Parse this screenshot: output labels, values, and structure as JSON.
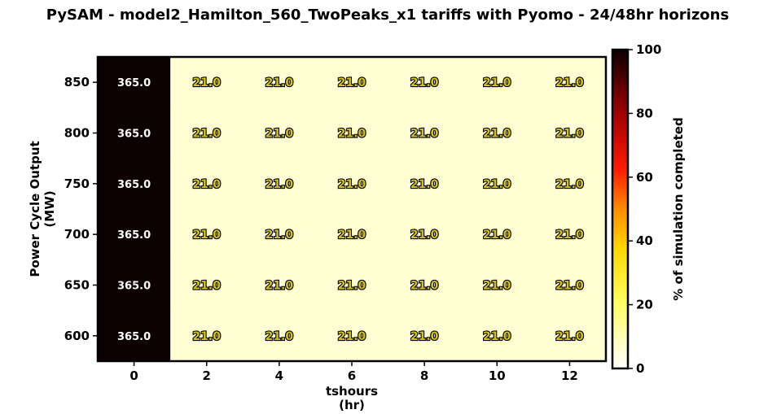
{
  "chart_data": {
    "type": "heatmap",
    "title": "PySAM - model2_Hamilton_560_TwoPeaks_x1 tariffs with Pyomo - 24/48hr horizons",
    "xlabel": [
      "tshours",
      "(hr)"
    ],
    "ylabel": [
      "Power Cycle Output",
      "(MW)"
    ],
    "x": [
      0,
      2,
      4,
      6,
      8,
      10,
      12
    ],
    "y": [
      600,
      650,
      700,
      750,
      800,
      850
    ],
    "x_tick_labels": [
      "0",
      "2",
      "4",
      "6",
      "8",
      "10",
      "12"
    ],
    "y_tick_labels": [
      "600",
      "650",
      "700",
      "750",
      "800",
      "850"
    ],
    "values": [
      [
        100,
        5.75,
        5.75,
        5.75,
        5.75,
        5.75,
        5.75
      ],
      [
        100,
        5.75,
        5.75,
        5.75,
        5.75,
        5.75,
        5.75
      ],
      [
        100,
        5.75,
        5.75,
        5.75,
        5.75,
        5.75,
        5.75
      ],
      [
        100,
        5.75,
        5.75,
        5.75,
        5.75,
        5.75,
        5.75
      ],
      [
        100,
        5.75,
        5.75,
        5.75,
        5.75,
        5.75,
        5.75
      ],
      [
        100,
        5.75,
        5.75,
        5.75,
        5.75,
        5.75,
        5.75
      ]
    ],
    "annotations": [
      [
        "365.0",
        "21.0",
        "21.0",
        "21.0",
        "21.0",
        "21.0",
        "21.0"
      ],
      [
        "365.0",
        "21.0",
        "21.0",
        "21.0",
        "21.0",
        "21.0",
        "21.0"
      ],
      [
        "365.0",
        "21.0",
        "21.0",
        "21.0",
        "21.0",
        "21.0",
        "21.0"
      ],
      [
        "365.0",
        "21.0",
        "21.0",
        "21.0",
        "21.0",
        "21.0",
        "21.0"
      ],
      [
        "365.0",
        "21.0",
        "21.0",
        "21.0",
        "21.0",
        "21.0",
        "21.0"
      ],
      [
        "365.0",
        "21.0",
        "21.0",
        "21.0",
        "21.0",
        "21.0",
        "21.0"
      ]
    ],
    "colormap": "hot_r",
    "colorbar": {
      "label": "% of simulation completed",
      "range": [
        0,
        100
      ],
      "ticks": [
        "0",
        "20",
        "40",
        "60",
        "80",
        "100"
      ]
    },
    "colors": {
      "high": "#0d0000",
      "low": "#ffffc8"
    }
  }
}
